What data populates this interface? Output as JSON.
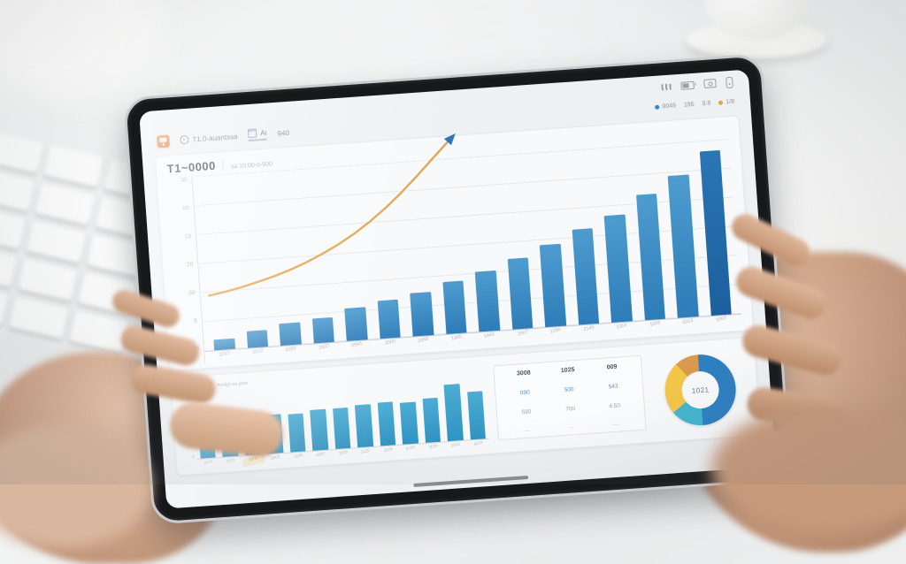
{
  "status_bar": {
    "icons": [
      "signal-icon",
      "battery-icon",
      "camera-icon",
      "front-camera-icon"
    ]
  },
  "app_header": {
    "nav": [
      {
        "label": "T1.0-auantssa"
      },
      {
        "label": "Ai"
      },
      {
        "label": "940"
      }
    ],
    "legend": [
      {
        "dot": "#3b82c4",
        "label": "9049"
      },
      {
        "dot": null,
        "label": "185"
      },
      {
        "dot": null,
        "label": "9.8"
      },
      {
        "dot": "#e8a33d",
        "label": "1/8"
      }
    ]
  },
  "stats_table": {
    "rows": [
      [
        "3008",
        "1025",
        "009"
      ],
      [
        "090",
        "500",
        "543"
      ],
      [
        "590",
        "700",
        "4.50"
      ],
      [
        "—",
        "—",
        "—"
      ]
    ]
  },
  "colors": {
    "bar_top": "#4e9ccf",
    "bar_bottom": "#2e7cb8",
    "bar_highlight_top": "#2b76b4",
    "bar_highlight_bottom": "#1c5f9d",
    "trend_line": "#e2a44a",
    "trend_arrow": "#2f74b5",
    "accent_orange": "#d97f45"
  },
  "chart_data": [
    {
      "type": "bar",
      "title": "T1~0000",
      "subtitle": "sa 10:00-d-500",
      "categories": [
        "2013",
        "0512",
        "4200",
        "2003",
        "0505",
        "2000",
        "2450",
        "1900",
        "1940",
        "2907",
        "1198",
        "2146",
        "2115",
        "1009",
        "0023",
        "9303"
      ],
      "series": [
        {
          "name": "bars",
          "values": [
            2,
            3,
            4,
            4.5,
            6,
            7,
            8,
            9.5,
            11,
            13,
            15,
            17.5,
            19.5,
            23,
            26,
            30
          ]
        },
        {
          "name": "trend-line",
          "values": [
            3,
            3.7,
            4.5,
            5.5,
            6.6,
            7.9,
            9.4,
            11.2,
            13.2,
            15.5,
            18.2,
            21.2,
            24.6,
            28.3,
            32.2,
            36
          ]
        }
      ],
      "highlight_index": 15,
      "y_ticks": [
        "30",
        "00",
        "10",
        "20",
        "60",
        "9",
        "0"
      ],
      "ylim": [
        0,
        32
      ],
      "grid": true,
      "legend_position": "top-right"
    },
    {
      "type": "bar",
      "title": "T·Arbead",
      "subtitle": "Analyt-os-jane",
      "categories": [
        "2013",
        "2113",
        "6405",
        "2003",
        "2103",
        "4020",
        "2003",
        "2120",
        "2023",
        "0703",
        "2019",
        "2003",
        "0019"
      ],
      "values": [
        5,
        5.3,
        5.6,
        5.9,
        5.7,
        6.1,
        6.2,
        6.4,
        6.6,
        6.3,
        6.7,
        8.6,
        7.2
      ],
      "highlight_label_index": 2,
      "y_ticks": [
        "9",
        "3",
        "4"
      ],
      "ylim": [
        0,
        10
      ],
      "grid": false
    },
    {
      "type": "pie",
      "center_label": "1021",
      "slices": [
        {
          "name": "segment-blue",
          "value": 50,
          "color": "#2e7fc0"
        },
        {
          "name": "segment-teal",
          "value": 15,
          "color": "#45b4cf"
        },
        {
          "name": "segment-yellow",
          "value": 24,
          "color": "#f3c64a"
        },
        {
          "name": "segment-orange",
          "value": 11,
          "color": "#d9994e"
        }
      ]
    }
  ]
}
